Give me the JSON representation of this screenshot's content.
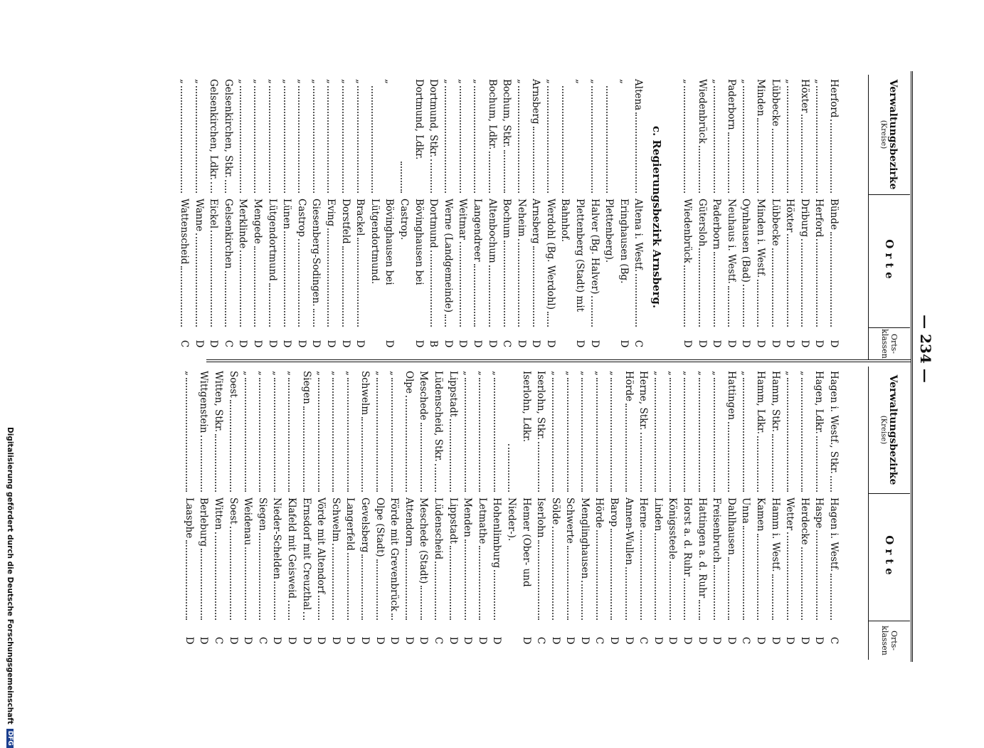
{
  "page_number": "— 234 —",
  "footer": {
    "text": "Digitalisierung gefördert durch die Deutsche Forschungsgemeinschaft",
    "logo": "DFG"
  },
  "tables": [
    {
      "headers": {
        "bezirk": "Verwaltungsbezirke",
        "kreise": "(Kreise)",
        "orte": "Orte",
        "klassen_1": "Orts-",
        "klassen_2": "klassen"
      },
      "groups": [
        {
          "rows": [
            [
              "Herford",
              "Bünde",
              "D"
            ],
            [
              "„",
              "Herford",
              "D"
            ],
            [
              "Höxter",
              "Driburg",
              "D"
            ],
            [
              "„",
              "Höxter",
              "D"
            ],
            [
              "Lübbecke",
              "Lübbecke",
              "D"
            ],
            [
              "Minden",
              "Minden i. Westf.",
              "D"
            ],
            [
              "„",
              "Oynhausen (Bad)",
              "D"
            ],
            [
              "Paderborn",
              "Neuhaus i. Westf.",
              "D"
            ],
            [
              "„",
              "Paderborn",
              "D"
            ],
            [
              "Wiedenbrück",
              "Gütersloh",
              "D"
            ],
            [
              "„",
              "Wiedenbrück",
              "D"
            ]
          ]
        },
        {
          "heading": "c. Regierungsbezirk Arnsberg.",
          "rows": [
            [
              "Altena",
              "Altena i. Westf.",
              "C"
            ],
            [
              "„",
              "Eringhausen (Bg. Plettenberg).",
              "D"
            ],
            [
              "„",
              "Halver (Bg. Halver)",
              "D"
            ],
            [
              "„",
              "Plettenberg (Stadt) mit Bahnhof.",
              "D"
            ],
            [
              "„",
              "Werdohl (Bg. Werdohl)",
              "D"
            ],
            [
              "Arnsberg",
              "Arnsberg",
              "D"
            ],
            [
              "„",
              "Neheim",
              "D"
            ],
            [
              "Bochum, Stkr.",
              "Bochum",
              "C"
            ],
            [
              "Bochum, Ldkr.",
              "Altenbochum",
              "D"
            ],
            [
              "„",
              "Langendreer",
              "D"
            ],
            [
              "„",
              "Weitmar",
              "D"
            ],
            [
              "„",
              "Werne (Landgemeinde)",
              "D"
            ],
            [
              "Dortmund, Stkr.",
              "Dortmund",
              "B"
            ],
            [
              "Dortmund, Ldkr.",
              "Bövinghausen bei Castrop.",
              "D"
            ],
            [
              "„",
              "Bövinghausen bei Lütgendortmund.",
              "D"
            ],
            [
              "„",
              "Brackel",
              "D"
            ],
            [
              "„",
              "Dorstfeld",
              "D"
            ],
            [
              "„",
              "Eving",
              "D"
            ],
            [
              "„",
              "Giesenberg-Sodingen.",
              "D"
            ],
            [
              "„",
              "Castrop",
              "D"
            ],
            [
              "„",
              "Lünen",
              "D"
            ],
            [
              "„",
              "Lütgendortmund",
              "D"
            ],
            [
              "„",
              "Mengede",
              "D"
            ],
            [
              "„",
              "Merklinde",
              "D"
            ],
            [
              "Gelsenkirchen, Stkr.",
              "Gelsenkirchen",
              "C"
            ],
            [
              "Gelsenkirchen, Ldkr.",
              "Eickel",
              "D"
            ],
            [
              "„",
              "Wanne",
              "D"
            ],
            [
              "„",
              "Wattenscheid",
              "C"
            ]
          ]
        }
      ]
    },
    {
      "headers": {
        "bezirk": "Verwaltungsbezirke",
        "kreise": "(Kreise)",
        "orte": "Orte",
        "klassen_1": "Orts-",
        "klassen_2": "klassen"
      },
      "groups": [
        {
          "rows": [
            [
              "Hagen i. Westf., Stkr.",
              "Hagen i. Westf.",
              "C"
            ],
            [
              "Hagen, Ldkr.",
              "Haspe",
              "D"
            ],
            [
              "„",
              "Herdecke",
              "D"
            ],
            [
              "„",
              "Wetter",
              "D"
            ],
            [
              "Hamm, Stkr.",
              "Hamm i. Westf.",
              "D"
            ],
            [
              "Hamm, Ldkr.",
              "Kamen",
              "D"
            ],
            [
              "„",
              "Unna",
              "C"
            ],
            [
              "Hattingen",
              "Dahlhausen",
              "D"
            ],
            [
              "„",
              "Freisenbruch",
              "D"
            ],
            [
              "„",
              "Hattingen a. d. Ruhr",
              "D"
            ],
            [
              "„",
              "Horst a. d. Ruhr",
              "D"
            ],
            [
              "„",
              "Königssteele",
              "D"
            ],
            [
              "„",
              "Linden",
              "D"
            ],
            [
              "Herne, Stkr.",
              "Herne",
              "C"
            ],
            [
              "Hörde",
              "Annen-Wullen",
              "D"
            ],
            [
              "„",
              "Barop",
              "D"
            ],
            [
              "„",
              "Hörde",
              "C"
            ],
            [
              "„",
              "Menglinghausen",
              "D"
            ],
            [
              "„",
              "Schwerte",
              "D"
            ],
            [
              "„",
              "Sölde",
              "D"
            ],
            [
              "Iserlohn, Stkr.",
              "Iserlohn",
              "C"
            ],
            [
              "Iserlohn, Ldkr.",
              "Hemer (Ober- und Nieder-).",
              "D"
            ],
            [
              "„",
              "Hohenlimburg",
              "D"
            ],
            [
              "„",
              "Letmathe",
              "D"
            ],
            [
              "„",
              "Menden",
              "D"
            ],
            [
              "Lippstadt",
              "Lippstadt",
              "D"
            ],
            [
              "Lüdenscheid, Stkr.",
              "Lüdenscheid",
              "C"
            ],
            [
              "Meschede",
              "Meschede (Stadt)",
              "D"
            ],
            [
              "Olpe",
              "Attendorn",
              "D"
            ],
            [
              "„",
              "Förde mit Grevenbrück",
              "D"
            ],
            [
              "„",
              "Olpe (Stadt)",
              "D"
            ],
            [
              "Schwelm",
              "Gevelsberg",
              "D"
            ],
            [
              "„",
              "Langerfeld",
              "D"
            ],
            [
              "„",
              "Schwelm",
              "D"
            ],
            [
              "„",
              "Vörde mit Altendorf",
              "D"
            ],
            [
              "Siegen",
              "Ernsdorf mit Creuzthal",
              "D"
            ],
            [
              "„",
              "Klafeld mit Geisweid",
              "D"
            ],
            [
              "„",
              "Nieder-Schelden",
              "D"
            ],
            [
              "„",
              "Siegen",
              "C"
            ],
            [
              "„",
              "Weidenau",
              "D"
            ],
            [
              "Soest",
              "Soest",
              "D"
            ],
            [
              "Witten, Stkr.",
              "Witten",
              "C"
            ],
            [
              "Wittgenstein",
              "Berleburg",
              "D"
            ],
            [
              "„",
              "Laasphe",
              "D"
            ]
          ]
        }
      ]
    }
  ]
}
